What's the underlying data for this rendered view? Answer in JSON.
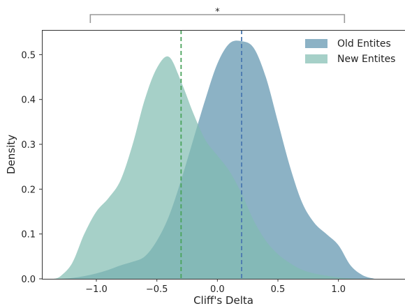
{
  "chart_data": {
    "type": "area",
    "xlabel": "Cliff's Delta",
    "ylabel": "Density",
    "xlim": [
      -1.45,
      1.55
    ],
    "ylim": [
      0,
      0.555
    ],
    "xticks": [
      -1.0,
      -0.5,
      0.0,
      0.5,
      1.0
    ],
    "xtick_labels": [
      "−1.0",
      "−0.5",
      "0.0",
      "0.5",
      "1.0"
    ],
    "yticks": [
      0.0,
      0.1,
      0.2,
      0.3,
      0.4,
      0.5
    ],
    "ytick_labels": [
      "0.0",
      "0.1",
      "0.2",
      "0.3",
      "0.4",
      "0.5"
    ],
    "grid": false,
    "legend_position": "top-right",
    "series": [
      {
        "name": "Old Entites",
        "color": "#5b91ad",
        "mean": 0.2,
        "x": [
          -1.3,
          -1.2,
          -1.1,
          -1.0,
          -0.9,
          -0.8,
          -0.7,
          -0.6,
          -0.5,
          -0.4,
          -0.3,
          -0.2,
          -0.1,
          0.0,
          0.1,
          0.2,
          0.3,
          0.4,
          0.5,
          0.6,
          0.7,
          0.8,
          0.9,
          1.0,
          1.1,
          1.2,
          1.3
        ],
        "y": [
          0.0,
          0.002,
          0.006,
          0.012,
          0.02,
          0.03,
          0.038,
          0.05,
          0.085,
          0.14,
          0.22,
          0.31,
          0.4,
          0.48,
          0.525,
          0.53,
          0.515,
          0.45,
          0.35,
          0.25,
          0.17,
          0.125,
          0.1,
          0.075,
          0.03,
          0.008,
          0.0
        ]
      },
      {
        "name": "New Entites",
        "color": "#80bcb0",
        "mean": -0.3,
        "x": [
          -1.35,
          -1.3,
          -1.2,
          -1.1,
          -1.0,
          -0.9,
          -0.8,
          -0.7,
          -0.6,
          -0.5,
          -0.4,
          -0.3,
          -0.2,
          -0.1,
          0.0,
          0.1,
          0.2,
          0.3,
          0.4,
          0.5,
          0.6,
          0.7,
          0.8,
          0.9,
          1.0,
          1.1,
          1.2,
          1.25
        ],
        "y": [
          0.0,
          0.005,
          0.035,
          0.1,
          0.15,
          0.18,
          0.22,
          0.3,
          0.4,
          0.47,
          0.495,
          0.44,
          0.37,
          0.31,
          0.275,
          0.24,
          0.19,
          0.13,
          0.085,
          0.055,
          0.035,
          0.02,
          0.012,
          0.007,
          0.003,
          0.001,
          0.0,
          0.0
        ]
      }
    ],
    "annotation": {
      "text": "*",
      "from_x": -1.05,
      "to_x": 1.05
    }
  }
}
